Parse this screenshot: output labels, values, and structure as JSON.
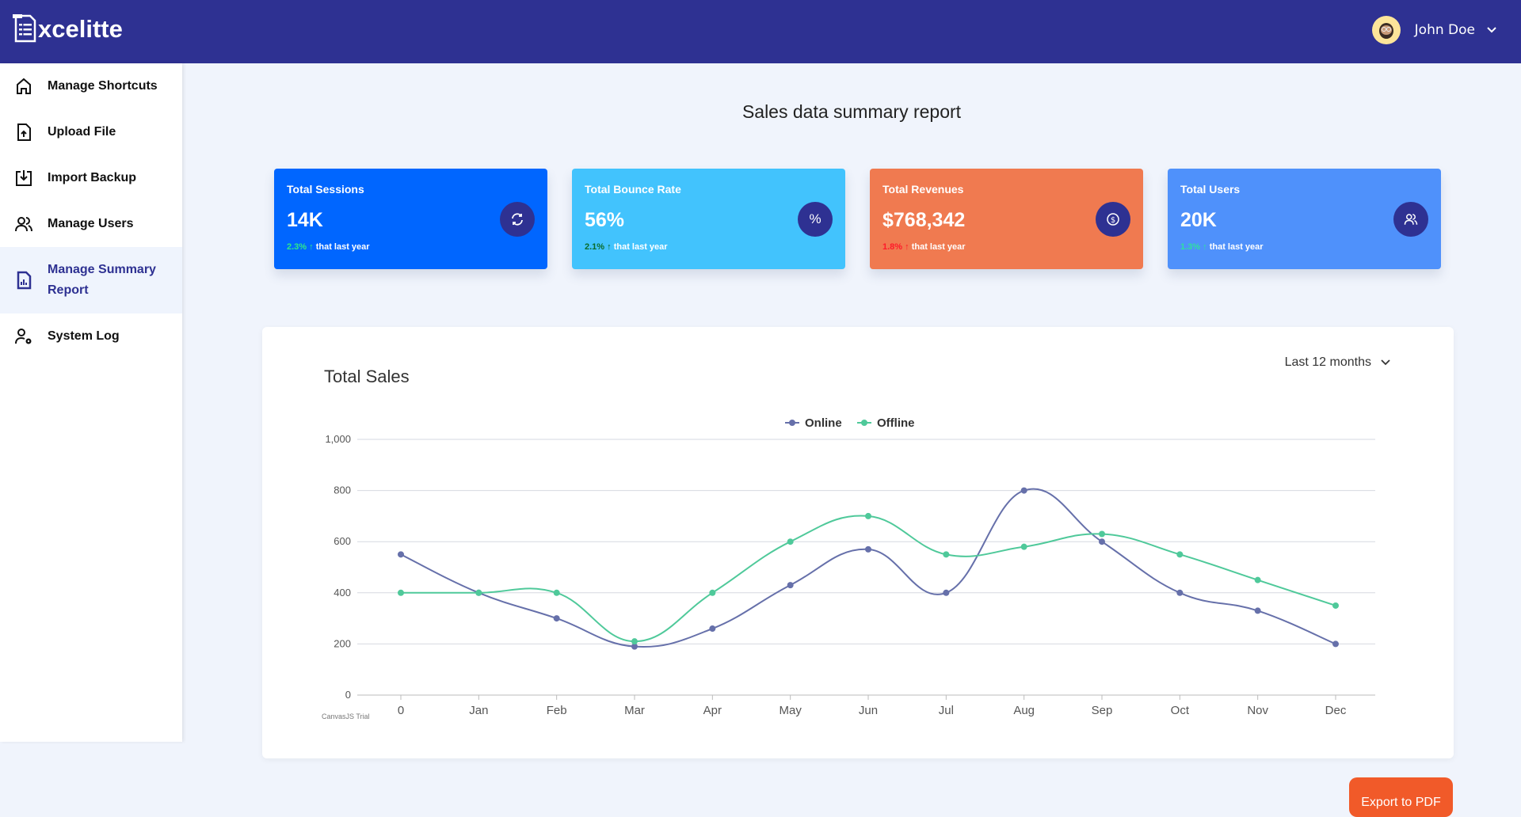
{
  "app": {
    "name": "xcelitte"
  },
  "user": {
    "name": "John Doe"
  },
  "sidebar": {
    "items": [
      {
        "label": "Manage Shortcuts",
        "icon": "home-icon"
      },
      {
        "label": "Upload File",
        "icon": "file-upload-icon"
      },
      {
        "label": "Import Backup",
        "icon": "import-icon"
      },
      {
        "label": "Manage Users",
        "icon": "users-icon"
      },
      {
        "label": "Manage Summary Report",
        "icon": "report-icon",
        "active": true
      },
      {
        "label": "System Log",
        "icon": "user-gear-icon"
      }
    ]
  },
  "page": {
    "title": "Sales data summary report"
  },
  "cards": [
    {
      "title": "Total Sessions",
      "value": "14K",
      "change": "2.3%",
      "suffix": "that last year",
      "color": "#0066ff",
      "change_color": "#2ee88a",
      "icon": "refresh-icon"
    },
    {
      "title": "Total Bounce Rate",
      "value": "56%",
      "change": "2.1%",
      "suffix": "that last year",
      "color": "#42c3fd",
      "change_color": "#0b6b2a",
      "icon": "percent-icon"
    },
    {
      "title": "Total Revenues",
      "value": "$768,342",
      "change": "1.8%",
      "suffix": "that last year",
      "color": "#f07a50",
      "change_color": "#ff1a2a",
      "icon": "dollar-icon"
    },
    {
      "title": "Total Users",
      "value": "20K",
      "change": "1.3%",
      "suffix": "that last year",
      "color": "#4f91fb",
      "change_color": "#2ee0a0",
      "icon": "users-icon"
    }
  ],
  "panel": {
    "title": "Total Sales",
    "range": "Last 12 months",
    "export": "Export to PDF",
    "watermark": "CanvasJS Trial"
  },
  "chart_data": {
    "type": "line",
    "categories": [
      "0",
      "Jan",
      "Feb",
      "Mar",
      "Apr",
      "May",
      "Jun",
      "Jul",
      "Aug",
      "Sep",
      "Oct",
      "Nov",
      "Dec"
    ],
    "series": [
      {
        "name": "Online",
        "color": "#6670aa",
        "values": [
          550,
          400,
          300,
          190,
          260,
          430,
          570,
          400,
          800,
          600,
          400,
          330,
          200
        ]
      },
      {
        "name": "Offline",
        "color": "#4fc99a",
        "values": [
          400,
          400,
          400,
          210,
          400,
          600,
          700,
          550,
          580,
          630,
          550,
          450,
          350
        ]
      }
    ],
    "yticks": [
      "0",
      "200",
      "400",
      "600",
      "800",
      "1,000"
    ],
    "ylim": [
      0,
      1000
    ],
    "grid": true,
    "legend": "top-center"
  }
}
